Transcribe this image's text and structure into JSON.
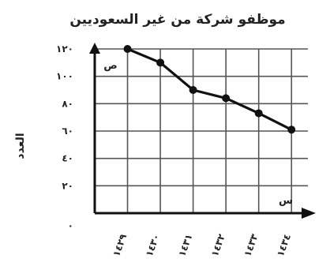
{
  "chart_data": {
    "type": "line",
    "title": "موظفو شركة من غير السعوديين",
    "ylabel": "العدد",
    "xlabel": "",
    "x_axis_letter": "س",
    "y_axis_letter": "ص",
    "categories": [
      "١٤٢٩",
      "١٤٣٠",
      "١٤٣١",
      "١٤٣٢",
      "١٤٣٣",
      "١٤٣٤"
    ],
    "y_ticks": [
      {
        "value": 0,
        "label": "٠"
      },
      {
        "value": 20,
        "label": "٢٠"
      },
      {
        "value": 40,
        "label": "٤٠"
      },
      {
        "value": 60,
        "label": "٦٠"
      },
      {
        "value": 80,
        "label": "٨٠"
      },
      {
        "value": 100,
        "label": "١٠٠"
      },
      {
        "value": 120,
        "label": "١٢٠"
      }
    ],
    "ylim": [
      0,
      120
    ],
    "grid": true,
    "series": [
      {
        "values": [
          120,
          110,
          90,
          84,
          73,
          61
        ],
        "color": "#111111"
      }
    ]
  }
}
